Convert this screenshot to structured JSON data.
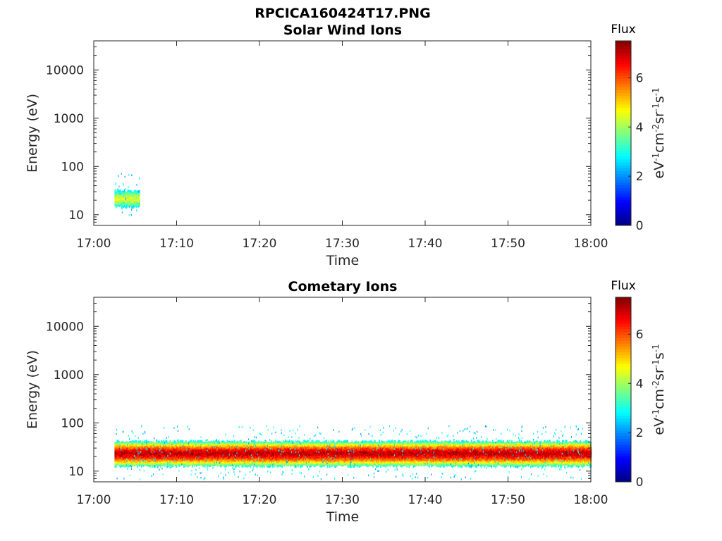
{
  "figure_title": "RPCICA160424T17.PNG",
  "chart_data": [
    {
      "type": "heatmap",
      "title": "Solar Wind Ions",
      "xlabel": "Time",
      "ylabel": "Energy (eV)",
      "x_range": [
        "17:00",
        "18:00"
      ],
      "x_ticks": [
        "17:00",
        "17:10",
        "17:20",
        "17:30",
        "17:40",
        "17:50",
        "18:00"
      ],
      "y_scale": "log",
      "ylim": [
        6,
        40000
      ],
      "y_ticks": [
        "10",
        "100",
        "1000",
        "10000"
      ],
      "colorbar": {
        "title": "Flux",
        "label": "eV-1cm-2sr-1s-1",
        "range": [
          0,
          7.5
        ],
        "ticks": [
          "0",
          "2",
          "4",
          "6"
        ],
        "colormap": "jet"
      },
      "regions": [
        {
          "t_start": "17:02:30",
          "t_end": "17:05:30",
          "e_low": 15,
          "e_high": 32,
          "e_peak": 22,
          "flux_peak": 4.4,
          "flux_edge": 2.8
        }
      ],
      "speckle": {
        "t_start": "17:02:30",
        "t_end": "17:05:30",
        "e_low": 9,
        "e_high": 80,
        "flux": 2.6
      }
    },
    {
      "type": "heatmap",
      "title": "Cometary Ions",
      "xlabel": "Time",
      "ylabel": "Energy (eV)",
      "x_range": [
        "17:00",
        "18:00"
      ],
      "x_ticks": [
        "17:00",
        "17:10",
        "17:20",
        "17:30",
        "17:40",
        "17:50",
        "18:00"
      ],
      "y_scale": "log",
      "ylim": [
        6,
        40000
      ],
      "y_ticks": [
        "10",
        "100",
        "1000",
        "10000"
      ],
      "colorbar": {
        "title": "Flux",
        "label": "eV-1cm-2sr-1s-1",
        "range": [
          0,
          7.5
        ],
        "ticks": [
          "0",
          "2",
          "4",
          "6"
        ],
        "colormap": "jet"
      },
      "regions": [
        {
          "t_start": "17:02:30",
          "t_end": "18:00:00",
          "e_low": 13,
          "e_high": 42,
          "e_peak": 24,
          "flux_peak": 7.0,
          "flux_edge": 3.0
        }
      ],
      "speckle": {
        "t_start": "17:02:30",
        "t_end": "18:00:00",
        "e_low": 7,
        "e_high": 90,
        "flux": 2.6
      }
    }
  ]
}
